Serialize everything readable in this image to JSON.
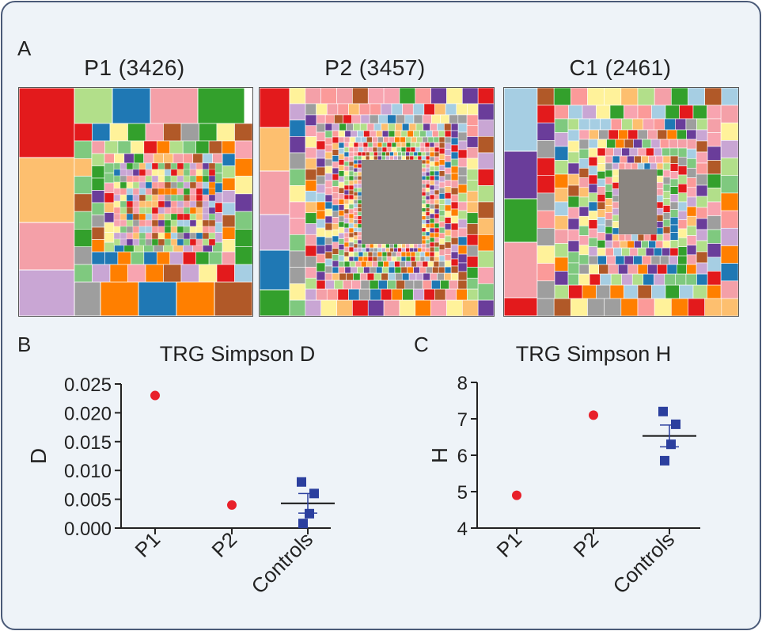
{
  "panel_labels": {
    "a": "A",
    "b": "B",
    "c": "C"
  },
  "treemaps": [
    {
      "title": "P1 (3426)"
    },
    {
      "title": "P2 (3457)"
    },
    {
      "title": "C1 (2461)"
    }
  ],
  "chart_data": [
    {
      "type": "scatter",
      "title": "TRG Simpson D",
      "xlabel": "",
      "ylabel": "D",
      "categories": [
        "P1",
        "P2",
        "Controls"
      ],
      "ylim": [
        0,
        0.025
      ],
      "yticks": [
        "0.000",
        "0.005",
        "0.010",
        "0.015",
        "0.020",
        "0.025"
      ],
      "series": [
        {
          "points": [
            {
              "category": "P1",
              "y": 0.023
            },
            {
              "category": "P2",
              "y": 0.004
            }
          ],
          "color": "#e8202a",
          "marker": "circle"
        },
        {
          "points": [
            {
              "category": "Controls",
              "y": 0.008
            },
            {
              "category": "Controls",
              "y": 0.006
            },
            {
              "category": "Controls",
              "y": 0.0025
            },
            {
              "category": "Controls",
              "y": 0.0008
            }
          ],
          "color": "#2b3f9e",
          "marker": "square"
        }
      ],
      "mean_sem": {
        "category": "Controls",
        "mean": 0.0043,
        "sem": 0.0017
      }
    },
    {
      "type": "scatter",
      "title": "TRG Simpson H",
      "xlabel": "",
      "ylabel": "H",
      "categories": [
        "P1",
        "P2",
        "Controls"
      ],
      "ylim": [
        4,
        8
      ],
      "yticks": [
        "4",
        "5",
        "6",
        "7",
        "8"
      ],
      "series": [
        {
          "points": [
            {
              "category": "P1",
              "y": 4.9
            },
            {
              "category": "P2",
              "y": 7.1
            }
          ],
          "color": "#e8202a",
          "marker": "circle"
        },
        {
          "points": [
            {
              "category": "Controls",
              "y": 7.2
            },
            {
              "category": "Controls",
              "y": 6.85
            },
            {
              "category": "Controls",
              "y": 6.3
            },
            {
              "category": "Controls",
              "y": 5.85
            }
          ],
          "color": "#2b3f9e",
          "marker": "square"
        }
      ],
      "mean_sem": {
        "category": "Controls",
        "mean": 6.53,
        "sem": 0.3
      }
    }
  ]
}
